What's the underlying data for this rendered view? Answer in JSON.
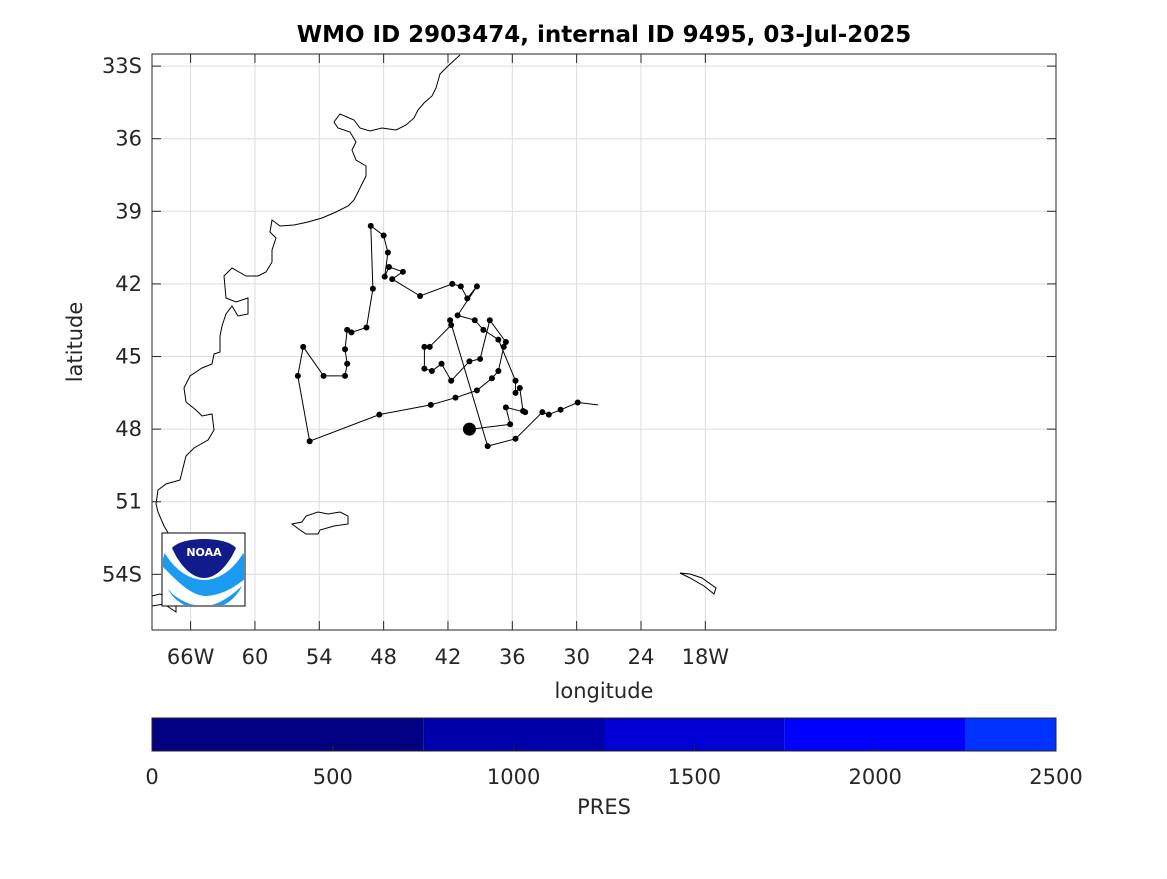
{
  "title": "WMO ID 2903474, internal ID 9495, 03-Jul-2025",
  "chart_data": {
    "type": "map-trajectory",
    "title": "WMO ID 2903474, internal ID 9495, 03-Jul-2025",
    "xlabel": "longitude",
    "ylabel": "latitude",
    "lon_range": [
      -69.6,
      14.7
    ],
    "lat_range": [
      -56.3,
      -32.5
    ],
    "x_ticks": [
      {
        "value": -66,
        "label": "66W"
      },
      {
        "value": -60,
        "label": "60"
      },
      {
        "value": -54,
        "label": "54"
      },
      {
        "value": -48,
        "label": "48"
      },
      {
        "value": -42,
        "label": "42"
      },
      {
        "value": -36,
        "label": "36"
      },
      {
        "value": -30,
        "label": "30"
      },
      {
        "value": -24,
        "label": "24"
      },
      {
        "value": -18,
        "label": "18W"
      }
    ],
    "y_ticks": [
      {
        "value": -33,
        "label": "33S"
      },
      {
        "value": -36,
        "label": "36"
      },
      {
        "value": -39,
        "label": "39"
      },
      {
        "value": -42,
        "label": "42"
      },
      {
        "value": -45,
        "label": "45"
      },
      {
        "value": -48,
        "label": "48"
      },
      {
        "value": -51,
        "label": "51"
      },
      {
        "value": -54,
        "label": "54S"
      }
    ],
    "grid": true,
    "trajectory": [
      [
        -40.0,
        -47.9
      ],
      [
        -40.1,
        -48.0
      ],
      [
        -39.9,
        -47.95
      ],
      [
        -39.8,
        -48.0
      ],
      [
        -36.2,
        -47.8
      ],
      [
        -36.6,
        -47.1
      ],
      [
        -34.8,
        -47.3
      ],
      [
        -35.0,
        -47.25
      ],
      [
        -35.3,
        -46.3
      ],
      [
        -35.7,
        -46.5
      ],
      [
        -35.7,
        -46.0
      ],
      [
        -37.3,
        -44.3
      ],
      [
        -38.7,
        -43.9
      ],
      [
        -39.5,
        -43.5
      ],
      [
        -41.1,
        -43.3
      ],
      [
        -39.3,
        -42.1
      ],
      [
        -40.2,
        -42.6
      ],
      [
        -40.8,
        -42.1
      ],
      [
        -41.6,
        -42.0
      ],
      [
        -44.6,
        -42.5
      ],
      [
        -47.2,
        -41.8
      ],
      [
        -46.2,
        -41.5
      ],
      [
        -47.5,
        -41.3
      ],
      [
        -47.9,
        -41.7
      ],
      [
        -47.6,
        -40.7
      ],
      [
        -48.0,
        -40.0
      ],
      [
        -49.2,
        -39.6
      ],
      [
        -49.0,
        -42.2
      ],
      [
        -49.6,
        -43.8
      ],
      [
        -51.0,
        -44.0
      ],
      [
        -51.4,
        -43.9
      ],
      [
        -51.6,
        -44.7
      ],
      [
        -51.4,
        -45.3
      ],
      [
        -51.6,
        -45.8
      ],
      [
        -53.6,
        -45.8
      ],
      [
        -55.5,
        -44.6
      ],
      [
        -56.0,
        -45.8
      ],
      [
        -54.9,
        -48.5
      ],
      [
        -48.4,
        -47.4
      ],
      [
        -43.6,
        -47.0
      ],
      [
        -41.3,
        -46.7
      ],
      [
        -39.3,
        -46.4
      ],
      [
        -37.9,
        -45.9
      ],
      [
        -37.3,
        -45.6
      ],
      [
        -36.8,
        -44.6
      ],
      [
        -36.6,
        -44.4
      ],
      [
        -38.1,
        -43.5
      ],
      [
        -39.0,
        -45.1
      ],
      [
        -40.0,
        -45.2
      ],
      [
        -41.7,
        -46.0
      ],
      [
        -42.6,
        -45.3
      ],
      [
        -43.5,
        -45.6
      ],
      [
        -44.2,
        -45.5
      ],
      [
        -44.2,
        -44.6
      ],
      [
        -43.7,
        -44.6
      ],
      [
        -41.7,
        -43.7
      ],
      [
        -41.8,
        -43.5
      ],
      [
        -38.3,
        -48.7
      ],
      [
        -35.7,
        -48.4
      ],
      [
        -33.2,
        -47.3
      ],
      [
        -32.6,
        -47.4
      ],
      [
        -31.5,
        -47.2
      ],
      [
        -29.9,
        -46.9
      ],
      [
        -28.0,
        -47.0
      ]
    ],
    "current_position": [
      -40.0,
      -48.0
    ],
    "colorbar": {
      "label": "PRES",
      "ticks": [
        0,
        500,
        1000,
        1500,
        2000,
        2500
      ],
      "tick_labels": [
        "0",
        "500",
        "1000",
        "1500",
        "2000",
        "2500"
      ],
      "segments": [
        {
          "from": 0,
          "to": 750,
          "color": "#000080"
        },
        {
          "from": 750,
          "to": 1250,
          "color": "#0000aa"
        },
        {
          "from": 1250,
          "to": 1750,
          "color": "#0000d4"
        },
        {
          "from": 1750,
          "to": 2250,
          "color": "#0000ff"
        },
        {
          "from": 2250,
          "to": 2500,
          "color": "#0033ff"
        }
      ]
    },
    "colors": {
      "track": "#000000",
      "coast": "#000000",
      "grid": "#dcdcdc"
    }
  },
  "logo": {
    "text": "NOAA",
    "name": "noaa-logo"
  }
}
